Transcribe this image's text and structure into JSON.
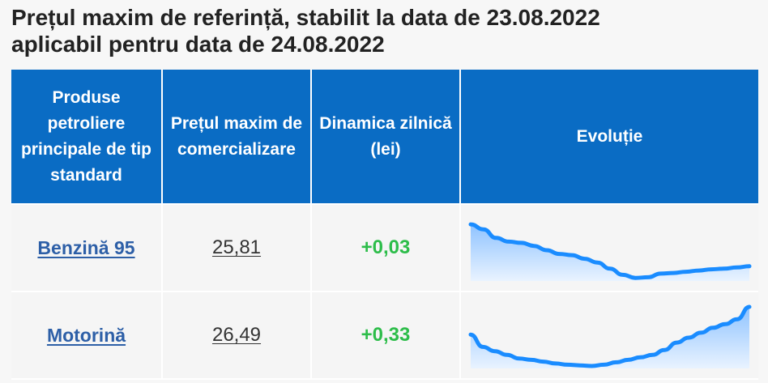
{
  "heading": {
    "line1": "Prețul maxim de referință, stabilit la data de 23.08.2022",
    "line2": "aplicabil pentru data de 24.08.2022"
  },
  "table": {
    "headers": {
      "product": "Produse petroliere principale de tip standard",
      "max_price": "Prețul maxim de comercializare",
      "daily_change": "Dinamica zilnică (lei)",
      "evolution": "Evoluție"
    },
    "rows": [
      {
        "product": "Benzină 95",
        "price": "25,81",
        "change": "+0,03",
        "trend": [
          0.92,
          0.84,
          0.7,
          0.64,
          0.62,
          0.57,
          0.5,
          0.44,
          0.42,
          0.36,
          0.3,
          0.2,
          0.1,
          0.05,
          0.06,
          0.12,
          0.13,
          0.15,
          0.17,
          0.19,
          0.2,
          0.22,
          0.24
        ]
      },
      {
        "product": "Motorină",
        "price": "26,49",
        "change": "+0,33",
        "trend": [
          0.55,
          0.35,
          0.28,
          0.22,
          0.16,
          0.14,
          0.11,
          0.08,
          0.06,
          0.05,
          0.04,
          0.06,
          0.1,
          0.14,
          0.18,
          0.22,
          0.3,
          0.42,
          0.5,
          0.58,
          0.66,
          0.72,
          0.8,
          1.0
        ]
      }
    ]
  },
  "colors": {
    "header_bg": "#0a6cc4",
    "link": "#2d5fa7",
    "positive": "#2dbd4a",
    "trend_line": "#1a8cff"
  }
}
